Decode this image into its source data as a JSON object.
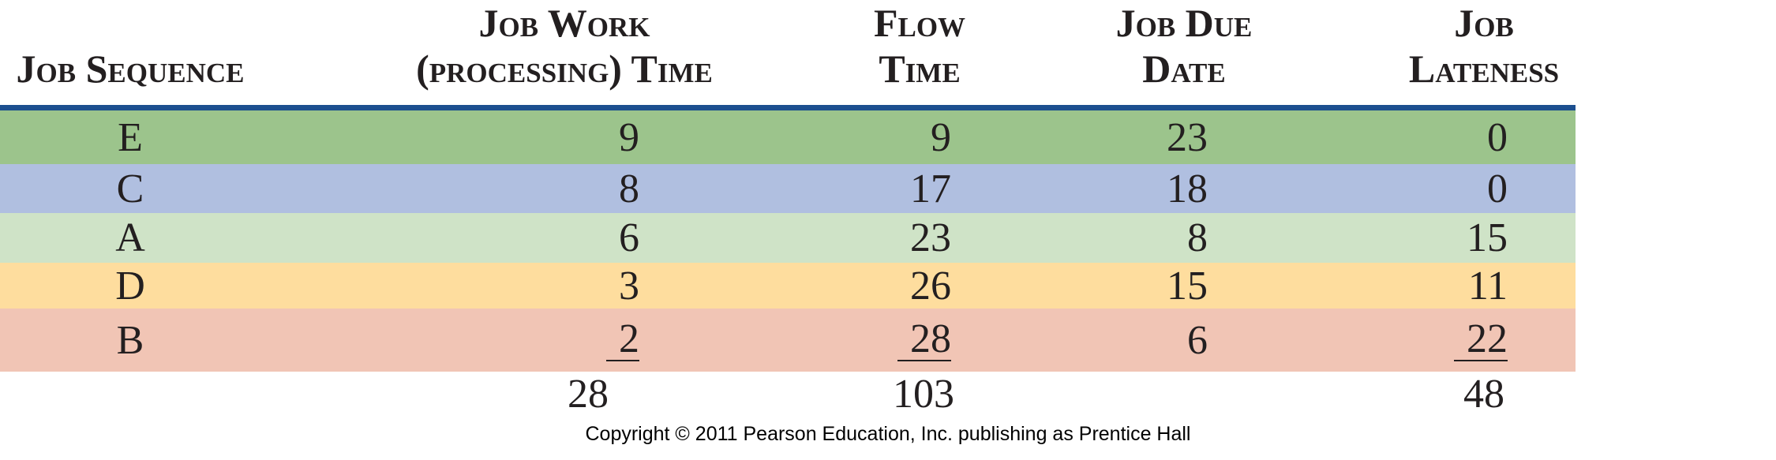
{
  "table": {
    "headers": {
      "seq": [
        "",
        "Job Sequence"
      ],
      "work": [
        "Job Work",
        "(processing) Time"
      ],
      "flow": [
        "Flow",
        "Time"
      ],
      "due": [
        "Job Due",
        "Date"
      ],
      "late": [
        "Job",
        "Lateness"
      ]
    },
    "rows": [
      {
        "seq": "E",
        "work": "9",
        "flow": "9",
        "due": "23",
        "late": "0",
        "color": "#9cc48c"
      },
      {
        "seq": "C",
        "work": "8",
        "flow": "17",
        "due": "18",
        "late": "0",
        "color": "#b0bfe0"
      },
      {
        "seq": "A",
        "work": "6",
        "flow": "23",
        "due": "8",
        "late": "15",
        "color": "#cfe3c7"
      },
      {
        "seq": "D",
        "work": "3",
        "flow": "26",
        "due": "15",
        "late": "11",
        "color": "#fedd9e"
      },
      {
        "seq": "B",
        "work": "2",
        "flow": "28",
        "due": "6",
        "late": "22",
        "color": "#f1c5b5"
      }
    ],
    "totals": {
      "work": "28",
      "flow": "103",
      "late": "48"
    },
    "rule_color": "#1c4f8f"
  },
  "footer": {
    "copyright": "Copyright © 2011 Pearson Education, Inc. publishing as Prentice Hall"
  }
}
